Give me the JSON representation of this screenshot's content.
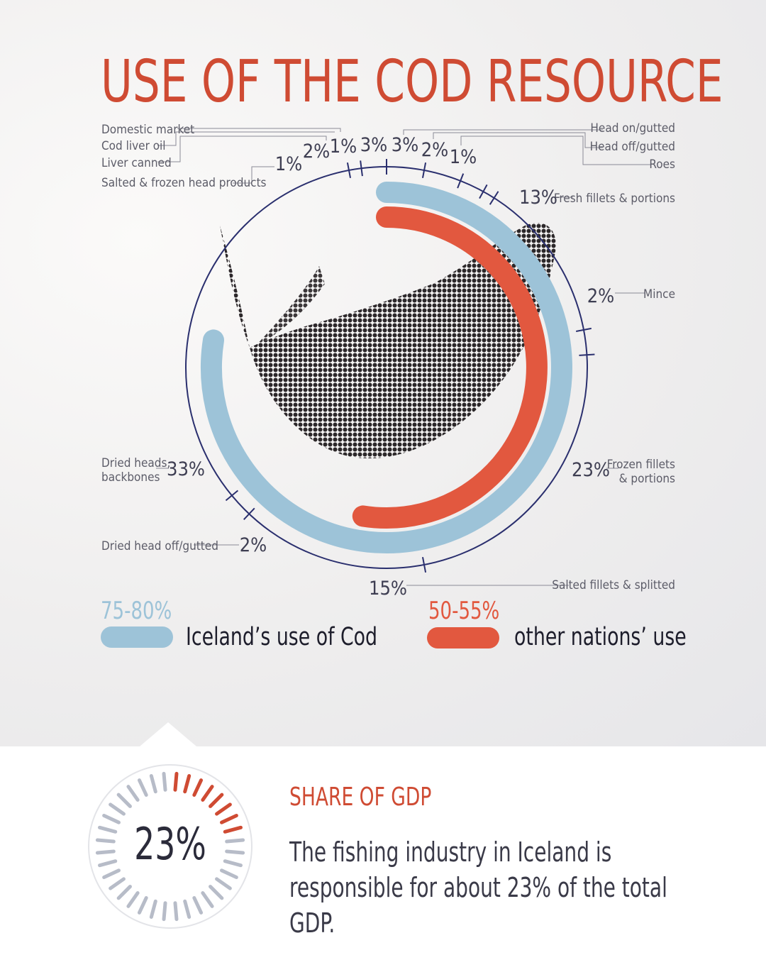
{
  "title": "USE OF THE COD RESOURCE",
  "colors": {
    "title": "#cf4b33",
    "iceland": "#9dc3d8",
    "other": "#e2583f",
    "ring": "#2a2f6e",
    "gauge_active": "#cf4b33",
    "gauge_inactive": "#b7bcc8"
  },
  "illustration": {
    "icon": "cod-fish-illustration"
  },
  "chart_data": {
    "type": "ring",
    "title": "USE OF THE COD RESOURCE",
    "segments": [
      {
        "label": "Domestic market",
        "percent": "3%",
        "value": 3
      },
      {
        "label": "Head on/gutted",
        "percent": "3%",
        "value": 3
      },
      {
        "label": "Head off/gutted",
        "percent": "2%",
        "value": 2
      },
      {
        "label": "Roes",
        "percent": "1%",
        "value": 1
      },
      {
        "label": "Fresh fillets & portions",
        "percent": "13%",
        "value": 13
      },
      {
        "label": "Mince",
        "percent": "2%",
        "value": 2
      },
      {
        "label": "Frozen fillets & portions",
        "percent": "23%",
        "value": 23
      },
      {
        "label": "Salted fillets & splitted",
        "percent": "15%",
        "value": 15
      },
      {
        "label": "Dried head off/gutted",
        "percent": "2%",
        "value": 2
      },
      {
        "label": "Dried heads, backbones",
        "percent": "33%",
        "value": 33
      },
      {
        "label": "Salted & frozen head products",
        "percent": "1%",
        "value": 1
      },
      {
        "label": "Liver canned",
        "percent": "2%",
        "value": 2
      },
      {
        "label": "Cod liver oil",
        "percent": "1%",
        "value": 1
      }
    ],
    "series": [
      {
        "name": "Iceland's use of Cod",
        "range": "75-80%",
        "value": 77.5
      },
      {
        "name": "other nations' use",
        "range": "50-55%",
        "value": 52.5
      }
    ]
  },
  "legend": {
    "iceland": {
      "percent": "75-80%",
      "label": "Iceland’s use of Cod"
    },
    "other": {
      "percent": "50-55%",
      "label": "other nations’ use"
    }
  },
  "gdp": {
    "heading": "SHARE OF GDP",
    "value_text": "23%",
    "value": 23,
    "description": "The fishing industry in Iceland is responsible for about 23% of the total GDP."
  }
}
